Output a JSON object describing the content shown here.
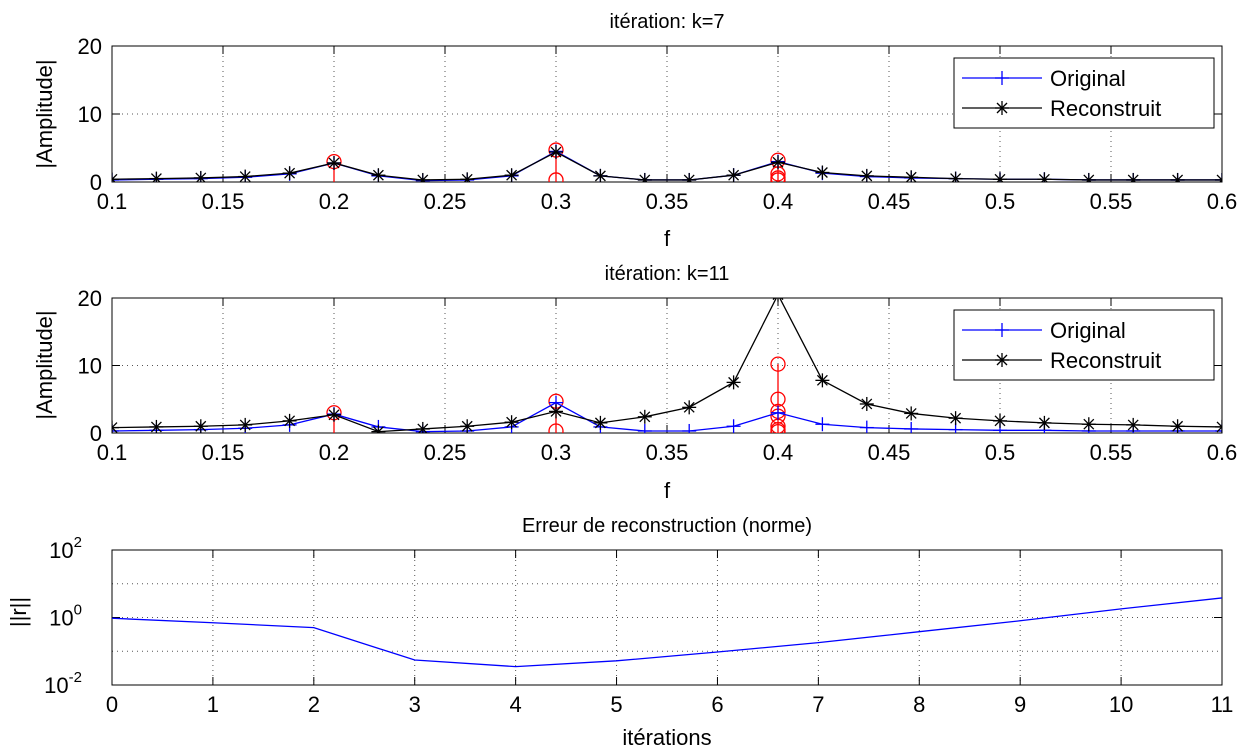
{
  "colors": {
    "original": "#0000ff",
    "reconstruit": "#000000",
    "stems": "#ff0000",
    "grid": "#555555"
  },
  "chart_data": [
    {
      "type": "line",
      "title": "itération: k=7",
      "xlabel": "f",
      "ylabel": "|Amplitude|",
      "xlim": [
        0.1,
        0.6
      ],
      "ylim": [
        0,
        20
      ],
      "xticks": [
        "0.1",
        "0.15",
        "0.2",
        "0.25",
        "0.3",
        "0.35",
        "0.4",
        "0.45",
        "0.5",
        "0.55",
        "0.6"
      ],
      "yticks": [
        "0",
        "10",
        "20"
      ],
      "grid": true,
      "legend": "top-right",
      "series": [
        {
          "name": "Original",
          "marker": "+",
          "x": [
            0.1,
            0.12,
            0.14,
            0.16,
            0.18,
            0.2,
            0.22,
            0.24,
            0.26,
            0.28,
            0.3,
            0.32,
            0.34,
            0.36,
            0.38,
            0.4,
            0.42,
            0.44,
            0.46,
            0.48,
            0.5,
            0.52,
            0.54,
            0.56,
            0.58,
            0.6
          ],
          "values": [
            0.3,
            0.4,
            0.5,
            0.7,
            1.2,
            2.8,
            0.9,
            0.2,
            0.3,
            0.9,
            4.5,
            0.9,
            0.3,
            0.3,
            1.0,
            3.0,
            1.3,
            0.8,
            0.6,
            0.5,
            0.4,
            0.4,
            0.3,
            0.3,
            0.3,
            0.3
          ]
        },
        {
          "name": "Reconstruit",
          "marker": "*",
          "x": [
            0.1,
            0.12,
            0.14,
            0.16,
            0.18,
            0.2,
            0.22,
            0.24,
            0.26,
            0.28,
            0.3,
            0.32,
            0.34,
            0.36,
            0.38,
            0.4,
            0.42,
            0.44,
            0.46,
            0.48,
            0.5,
            0.52,
            0.54,
            0.56,
            0.58,
            0.6
          ],
          "values": [
            0.4,
            0.5,
            0.6,
            0.8,
            1.3,
            2.8,
            1.0,
            0.3,
            0.4,
            1.0,
            4.4,
            0.9,
            0.3,
            0.3,
            1.0,
            2.9,
            1.4,
            0.9,
            0.7,
            0.5,
            0.4,
            0.4,
            0.3,
            0.3,
            0.3,
            0.3
          ]
        }
      ],
      "stems": [
        {
          "x": 0.2,
          "values": [
            3.0
          ]
        },
        {
          "x": 0.3,
          "values": [
            4.7,
            0.3
          ]
        },
        {
          "x": 0.4,
          "values": [
            3.2,
            1.2,
            0.6,
            0.3
          ]
        }
      ]
    },
    {
      "type": "line",
      "title": "itération: k=11",
      "xlabel": "f",
      "ylabel": "|Amplitude|",
      "xlim": [
        0.1,
        0.6
      ],
      "ylim": [
        0,
        20
      ],
      "xticks": [
        "0.1",
        "0.15",
        "0.2",
        "0.25",
        "0.3",
        "0.35",
        "0.4",
        "0.45",
        "0.5",
        "0.55",
        "0.6"
      ],
      "yticks": [
        "0",
        "10",
        "20"
      ],
      "grid": true,
      "legend": "top-right",
      "series": [
        {
          "name": "Original",
          "marker": "+",
          "x": [
            0.1,
            0.12,
            0.14,
            0.16,
            0.18,
            0.2,
            0.22,
            0.24,
            0.26,
            0.28,
            0.3,
            0.32,
            0.34,
            0.36,
            0.38,
            0.4,
            0.42,
            0.44,
            0.46,
            0.48,
            0.5,
            0.52,
            0.54,
            0.56,
            0.58,
            0.6
          ],
          "values": [
            0.3,
            0.4,
            0.5,
            0.7,
            1.2,
            2.8,
            0.9,
            0.2,
            0.3,
            0.9,
            4.5,
            0.9,
            0.3,
            0.3,
            1.0,
            3.0,
            1.3,
            0.8,
            0.6,
            0.5,
            0.4,
            0.4,
            0.3,
            0.3,
            0.3,
            0.3
          ]
        },
        {
          "name": "Reconstruit",
          "marker": "*",
          "x": [
            0.1,
            0.12,
            0.14,
            0.16,
            0.18,
            0.2,
            0.22,
            0.24,
            0.26,
            0.28,
            0.3,
            0.32,
            0.34,
            0.36,
            0.38,
            0.4,
            0.42,
            0.44,
            0.46,
            0.48,
            0.5,
            0.52,
            0.54,
            0.56,
            0.58,
            0.6
          ],
          "values": [
            0.8,
            0.9,
            1.0,
            1.2,
            1.8,
            2.7,
            0.2,
            0.6,
            1.0,
            1.6,
            3.2,
            1.5,
            2.4,
            3.8,
            7.5,
            20.5,
            7.8,
            4.3,
            2.9,
            2.2,
            1.8,
            1.5,
            1.3,
            1.2,
            1.0,
            0.9
          ]
        }
      ],
      "stems": [
        {
          "x": 0.2,
          "values": [
            3.0
          ]
        },
        {
          "x": 0.3,
          "values": [
            4.7,
            0.3
          ]
        },
        {
          "x": 0.4,
          "values": [
            10.2,
            5.0,
            3.2,
            2.5,
            1.0,
            0.5,
            0.2
          ]
        }
      ]
    },
    {
      "type": "line",
      "title": "Erreur de reconstruction (norme)",
      "xlabel": "itérations",
      "ylabel": "||r||",
      "xlim": [
        0,
        11
      ],
      "ylim": [
        0.01,
        100
      ],
      "yscale": "log",
      "xticks": [
        "0",
        "1",
        "2",
        "3",
        "4",
        "5",
        "6",
        "7",
        "8",
        "9",
        "10",
        "11"
      ],
      "yticks": [
        {
          "base": "10",
          "exp": "-2"
        },
        {
          "base": "10",
          "exp": "0"
        },
        {
          "base": "10",
          "exp": "2"
        }
      ],
      "grid": true,
      "series": [
        {
          "x": [
            0,
            1,
            2,
            3,
            4,
            5,
            6,
            7,
            8,
            9,
            10,
            11
          ],
          "values": [
            0.95,
            0.7,
            0.5,
            0.055,
            0.035,
            0.052,
            0.095,
            0.18,
            0.38,
            0.8,
            1.8,
            3.8
          ]
        }
      ]
    }
  ]
}
